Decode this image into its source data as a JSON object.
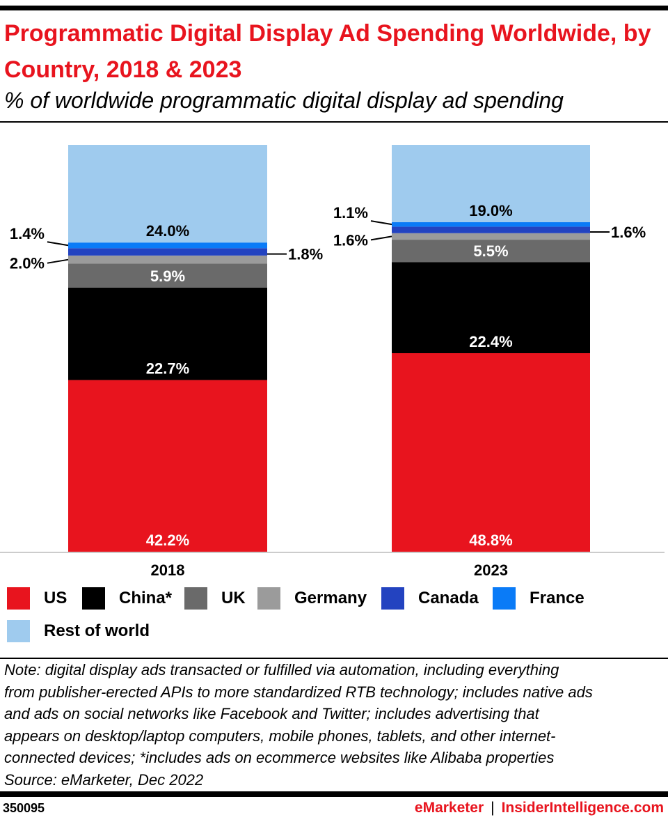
{
  "header": {
    "title": "Programmatic Digital Display Ad Spending Worldwide, by Country, 2018 & 2023",
    "subtitle": "% of worldwide programmatic digital display ad spending"
  },
  "chart_data": {
    "type": "bar",
    "stacked": true,
    "categories": [
      "2018",
      "2023"
    ],
    "series": [
      {
        "name": "US",
        "color": "#e8141e",
        "values": [
          42.2,
          48.8
        ],
        "labels": [
          "42.2%",
          "48.8%"
        ]
      },
      {
        "name": "China*",
        "color": "#000000",
        "values": [
          22.7,
          22.4
        ],
        "labels": [
          "22.7%",
          "22.4%"
        ]
      },
      {
        "name": "UK",
        "color": "#6a6a6a",
        "values": [
          5.9,
          5.5
        ],
        "labels": [
          "5.9%",
          "5.5%"
        ]
      },
      {
        "name": "Germany",
        "color": "#9b9b9b",
        "values": [
          2.0,
          1.6
        ],
        "labels": [
          "2.0%",
          "1.6%"
        ]
      },
      {
        "name": "Canada",
        "color": "#2343c0",
        "values": [
          1.8,
          1.6
        ],
        "labels": [
          "1.8%",
          "1.6%"
        ]
      },
      {
        "name": "France",
        "color": "#0a7bf7",
        "values": [
          1.4,
          1.1
        ],
        "labels": [
          "1.4%",
          "1.1%"
        ]
      },
      {
        "name": "Rest of world",
        "color": "#9fcbee",
        "values": [
          24.0,
          19.0
        ],
        "labels": [
          "24.0%",
          "19.0%"
        ]
      }
    ],
    "ylim": [
      0,
      100
    ],
    "grid": false,
    "legend_position": "bottom"
  },
  "note": [
    "Note: digital display ads transacted or fulfilled via automation, including everything",
    "from publisher-erected APIs to more standardized RTB technology; includes native ads",
    "and ads on social networks like Facebook and Twitter; includes advertising that",
    "appears on desktop/laptop computers, mobile phones, tablets, and other internet-",
    "connected devices; *includes ads on ecommerce websites like Alibaba properties",
    "Source: eMarketer, Dec 2022"
  ],
  "footer": {
    "id": "350095",
    "brand1": "eMarketer",
    "separator": "|",
    "brand2": "InsiderIntelligence.com"
  }
}
